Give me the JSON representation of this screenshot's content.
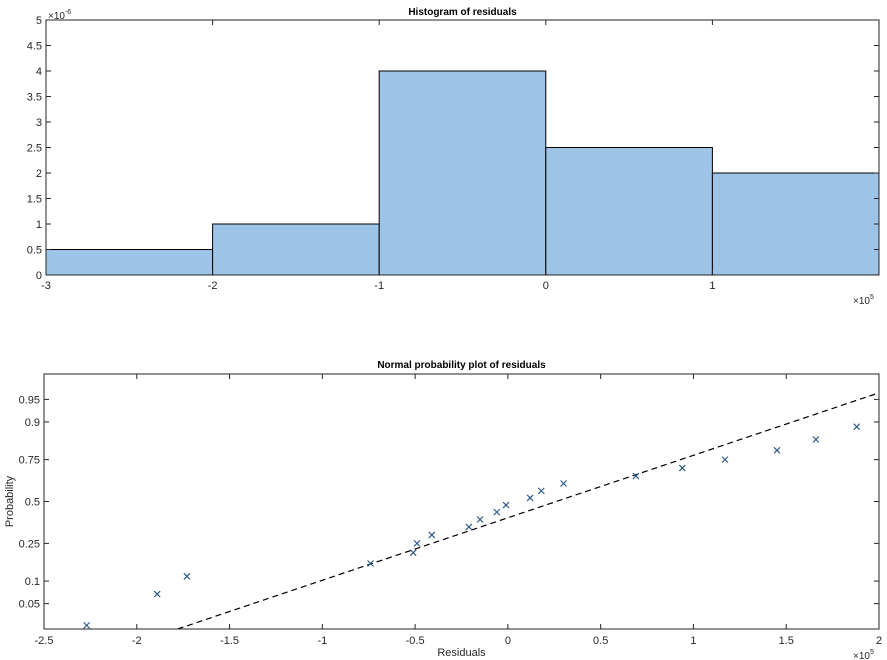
{
  "chart_data": [
    {
      "type": "bar",
      "title": "Histogram of residuals",
      "bin_edges": [
        -3,
        -2,
        -1,
        0,
        1,
        2
      ],
      "values": [
        0.5,
        1,
        4,
        2.5,
        2
      ],
      "xlim": [
        -3,
        2
      ],
      "ylim": [
        0,
        5
      ],
      "x_ticks": [
        -3,
        -2,
        -1,
        0,
        1
      ],
      "y_ticks": [
        0,
        0.5,
        1,
        1.5,
        2,
        2.5,
        3,
        3.5,
        4,
        4.5,
        5
      ],
      "x_exponent_base": "×10",
      "x_exponent_power": "5",
      "y_exponent_base": "×10",
      "y_exponent_power": "-6",
      "bar_color": "#9dc3e6"
    },
    {
      "type": "scatter",
      "title": "Normal probability plot of residuals",
      "xlabel": "Residuals",
      "ylabel": "Probability",
      "xlim": [
        -2.5,
        2
      ],
      "x_ticks": [
        -2.5,
        -2,
        -1.5,
        -1,
        -0.5,
        0,
        0.5,
        1,
        1.5,
        2
      ],
      "y_ticks": [
        0.05,
        0.1,
        0.25,
        0.5,
        0.75,
        0.9,
        0.95
      ],
      "x_exponent_base": "×10",
      "x_exponent_power": "5",
      "points": [
        [
          -2.27,
          0.023
        ],
        [
          -1.89,
          0.068
        ],
        [
          -1.73,
          0.114
        ],
        [
          -0.74,
          0.159
        ],
        [
          -0.51,
          0.205
        ],
        [
          -0.49,
          0.25
        ],
        [
          -0.41,
          0.295
        ],
        [
          -0.21,
          0.341
        ],
        [
          -0.15,
          0.386
        ],
        [
          -0.06,
          0.432
        ],
        [
          -0.01,
          0.477
        ],
        [
          0.12,
          0.523
        ],
        [
          0.18,
          0.568
        ],
        [
          0.3,
          0.614
        ],
        [
          0.69,
          0.659
        ],
        [
          0.94,
          0.705
        ],
        [
          1.17,
          0.75
        ],
        [
          1.45,
          0.795
        ],
        [
          1.66,
          0.841
        ],
        [
          1.88,
          0.886
        ]
      ],
      "fit_line": [
        [
          -1.78,
          0.02
        ],
        [
          2.0,
          0.96
        ]
      ],
      "marker_color": "#2e5a8a"
    }
  ]
}
